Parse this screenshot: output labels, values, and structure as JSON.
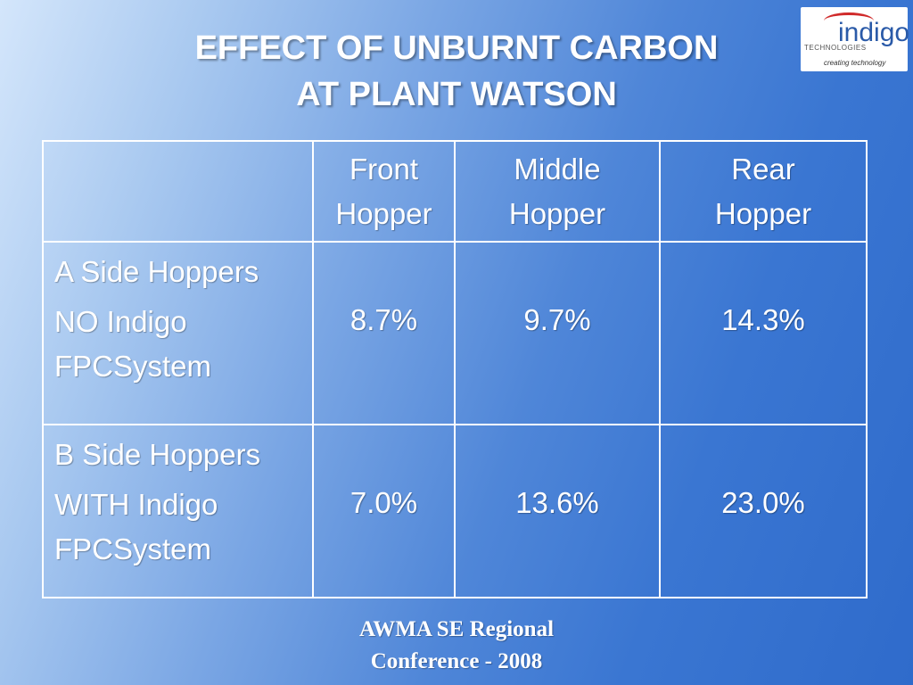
{
  "slide": {
    "title_line1": "EFFECT OF UNBURNT CARBON",
    "title_line2": "AT PLANT WATSON"
  },
  "logo": {
    "word": "indigo",
    "sub": "TECHNOLOGIES",
    "tagline": "creating technology",
    "accent_color": "#d02a2a",
    "word_color": "#2a5aa8"
  },
  "table": {
    "headers": [
      {
        "line1": "",
        "line2": ""
      },
      {
        "line1": "Front",
        "line2": "Hopper"
      },
      {
        "line1": "Middle",
        "line2": "Hopper"
      },
      {
        "line1": "Rear",
        "line2": "Hopper"
      }
    ],
    "rows": [
      {
        "label_line1": "A Side Hoppers",
        "label_line2": "NO Indigo",
        "label_line3": "FPCSystem",
        "values": [
          "8.7%",
          "9.7%",
          "14.3%"
        ]
      },
      {
        "label_line1": "B Side Hoppers",
        "label_line2": "WITH Indigo",
        "label_line3": "FPCSystem",
        "values": [
          "7.0%",
          "13.6%",
          "23.0%"
        ]
      }
    ]
  },
  "footer": {
    "line1": "AWMA SE Regional",
    "line2": "Conference - 2008"
  }
}
